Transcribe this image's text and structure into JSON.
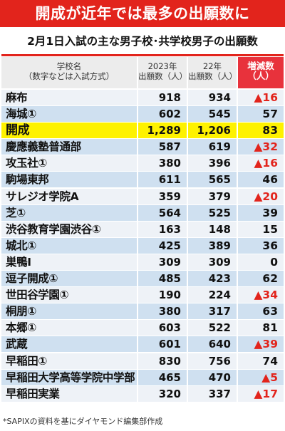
{
  "title": "開成が近年では最多の出願数に",
  "subtitle": "2月1日入試の主な男子校･共学校男子の出願数",
  "headers": {
    "school": [
      "学校名",
      "（数字などは入試方式）"
    ],
    "y2023": [
      "2023年",
      "出願数（人）"
    ],
    "y22": [
      "22年",
      "出願数（人）"
    ],
    "diff": [
      "増減数",
      "（人）"
    ]
  },
  "colors": {
    "banner": "#e2241c",
    "highlight": "#fef200",
    "increase": "#e2241c"
  },
  "rows": [
    {
      "school": "麻布",
      "y2023": "918",
      "y22": "934",
      "diff": "▲16",
      "decrease": true
    },
    {
      "school": "海城①",
      "y2023": "602",
      "y22": "545",
      "diff": "57",
      "decrease": false
    },
    {
      "school": "開成",
      "y2023": "1,289",
      "y22": "1,206",
      "diff": "83",
      "decrease": false,
      "highlight": true
    },
    {
      "school": "慶應義塾普通部",
      "y2023": "587",
      "y22": "619",
      "diff": "▲32",
      "decrease": true
    },
    {
      "school": "攻玉社①",
      "y2023": "380",
      "y22": "396",
      "diff": "▲16",
      "decrease": true
    },
    {
      "school": "駒場東邦",
      "y2023": "611",
      "y22": "565",
      "diff": "46",
      "decrease": false
    },
    {
      "school": "サレジオ学院A",
      "y2023": "359",
      "y22": "379",
      "diff": "▲20",
      "decrease": true
    },
    {
      "school": "芝①",
      "y2023": "564",
      "y22": "525",
      "diff": "39",
      "decrease": false
    },
    {
      "school": "渋谷教育学園渋谷①",
      "y2023": "163",
      "y22": "148",
      "diff": "15",
      "decrease": false
    },
    {
      "school": "城北①",
      "y2023": "425",
      "y22": "389",
      "diff": "36",
      "decrease": false
    },
    {
      "school": "巣鴨Ⅰ",
      "y2023": "309",
      "y22": "309",
      "diff": "0",
      "decrease": false
    },
    {
      "school": "逗子開成①",
      "y2023": "485",
      "y22": "423",
      "diff": "62",
      "decrease": false
    },
    {
      "school": "世田谷学園①",
      "y2023": "190",
      "y22": "224",
      "diff": "▲34",
      "decrease": true
    },
    {
      "school": "桐朋①",
      "y2023": "380",
      "y22": "317",
      "diff": "63",
      "decrease": false
    },
    {
      "school": "本郷①",
      "y2023": "603",
      "y22": "522",
      "diff": "81",
      "decrease": false
    },
    {
      "school": "武蔵",
      "y2023": "601",
      "y22": "640",
      "diff": "▲39",
      "decrease": true
    },
    {
      "school": "早稲田①",
      "y2023": "830",
      "y22": "756",
      "diff": "74",
      "decrease": false
    },
    {
      "school": "早稲田大学高等学院中学部",
      "y2023": "465",
      "y22": "470",
      "diff": "▲5",
      "decrease": true
    },
    {
      "school": "早稲田実業",
      "y2023": "320",
      "y22": "337",
      "diff": "▲17",
      "decrease": true
    }
  ],
  "footnote": "*SAPIXの資料を基にダイヤモンド編集部作成"
}
